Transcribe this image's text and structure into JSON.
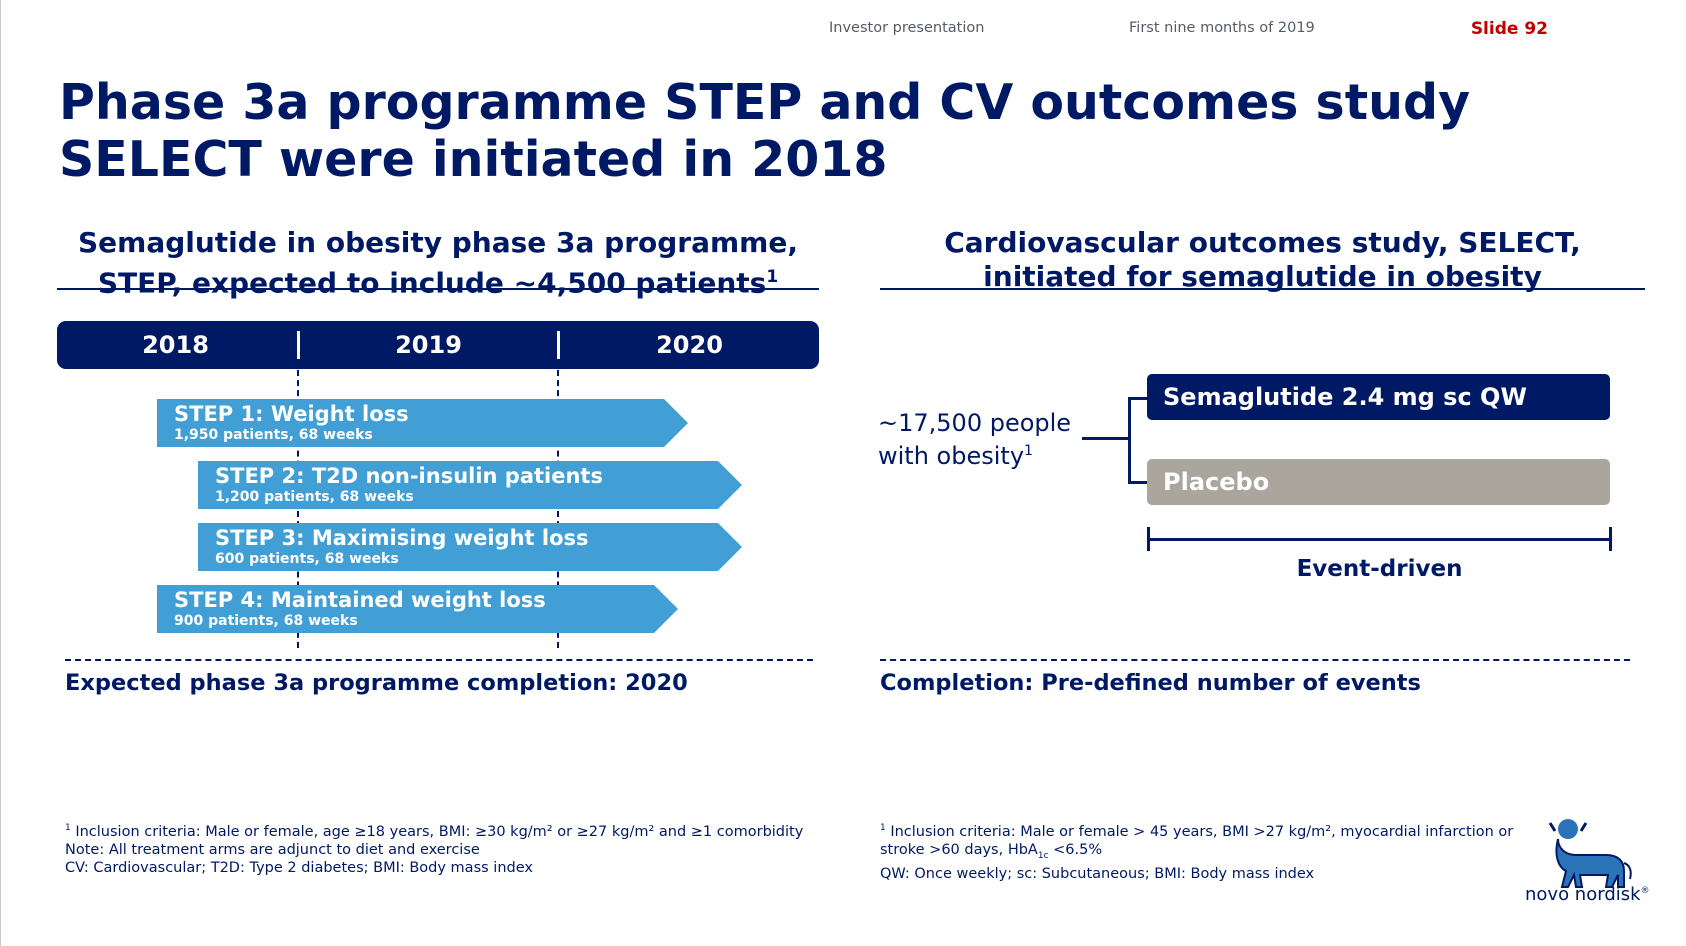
{
  "header": {
    "presentation": "Investor presentation",
    "period": "First nine months of 2019",
    "slide": "Slide 92"
  },
  "title": "Phase 3a programme STEP and CV outcomes study SELECT were initiated in 2018",
  "left": {
    "subhead_line1": "Semaglutide in obesity phase 3a programme,",
    "subhead_line2": "STEP, expected to include ~4,500 patients",
    "subhead_sup": "1",
    "years": [
      "2018",
      "2019",
      "2020"
    ],
    "trials": [
      {
        "title": "STEP 1: Weight loss",
        "detail": "1,950 patients, 68 weeks"
      },
      {
        "title": "STEP 2: T2D non-insulin patients",
        "detail": "1,200 patients, 68 weeks"
      },
      {
        "title": "STEP 3: Maximising weight loss",
        "detail": "600 patients, 68 weeks"
      },
      {
        "title": "STEP 4: Maintained weight loss",
        "detail": "900 patients, 68 weeks"
      }
    ],
    "completion": "Expected phase 3a programme completion: 2020",
    "footnote1_sup": "1",
    "footnote1": "Inclusion criteria: Male or female, age ≥18 years, BMI: ≥30 kg/m² or ≥27 kg/m² and ≥1 comorbidity",
    "footnote2": "Note: All treatment arms are adjunct to diet and exercise",
    "footnote3": "CV: Cardiovascular; T2D: Type 2 diabetes; BMI: Body mass index"
  },
  "right": {
    "subhead_line1": "Cardiovascular outcomes study, SELECT,",
    "subhead_line2": "initiated for semaglutide in obesity",
    "people_line1": "~17,500 people",
    "people_line2": "with obesity",
    "people_sup": "1",
    "arm_sema": "Semaglutide 2.4 mg sc QW",
    "arm_placebo": "Placebo",
    "event_label": "Event-driven",
    "completion": "Completion: Pre-defined number of events",
    "footnote1_sup": "1",
    "footnote1a": "Inclusion criteria: Male or female > 45 years, BMI >27 kg/m², myocardial infarction or",
    "footnote1b_pre": "stroke >60 days, HbA",
    "footnote1b_sub": "1c",
    "footnote1b_post": " <6.5%",
    "footnote2": "QW: Once weekly; sc: Subcutaneous; BMI: Body mass index"
  },
  "logo_text": "novo nordisk",
  "logo_mark": "®",
  "colors": {
    "navy": "#001965",
    "arrow_blue": "#429fd6",
    "placebo_grey": "#aaa59d",
    "slide_red": "#c00000"
  }
}
